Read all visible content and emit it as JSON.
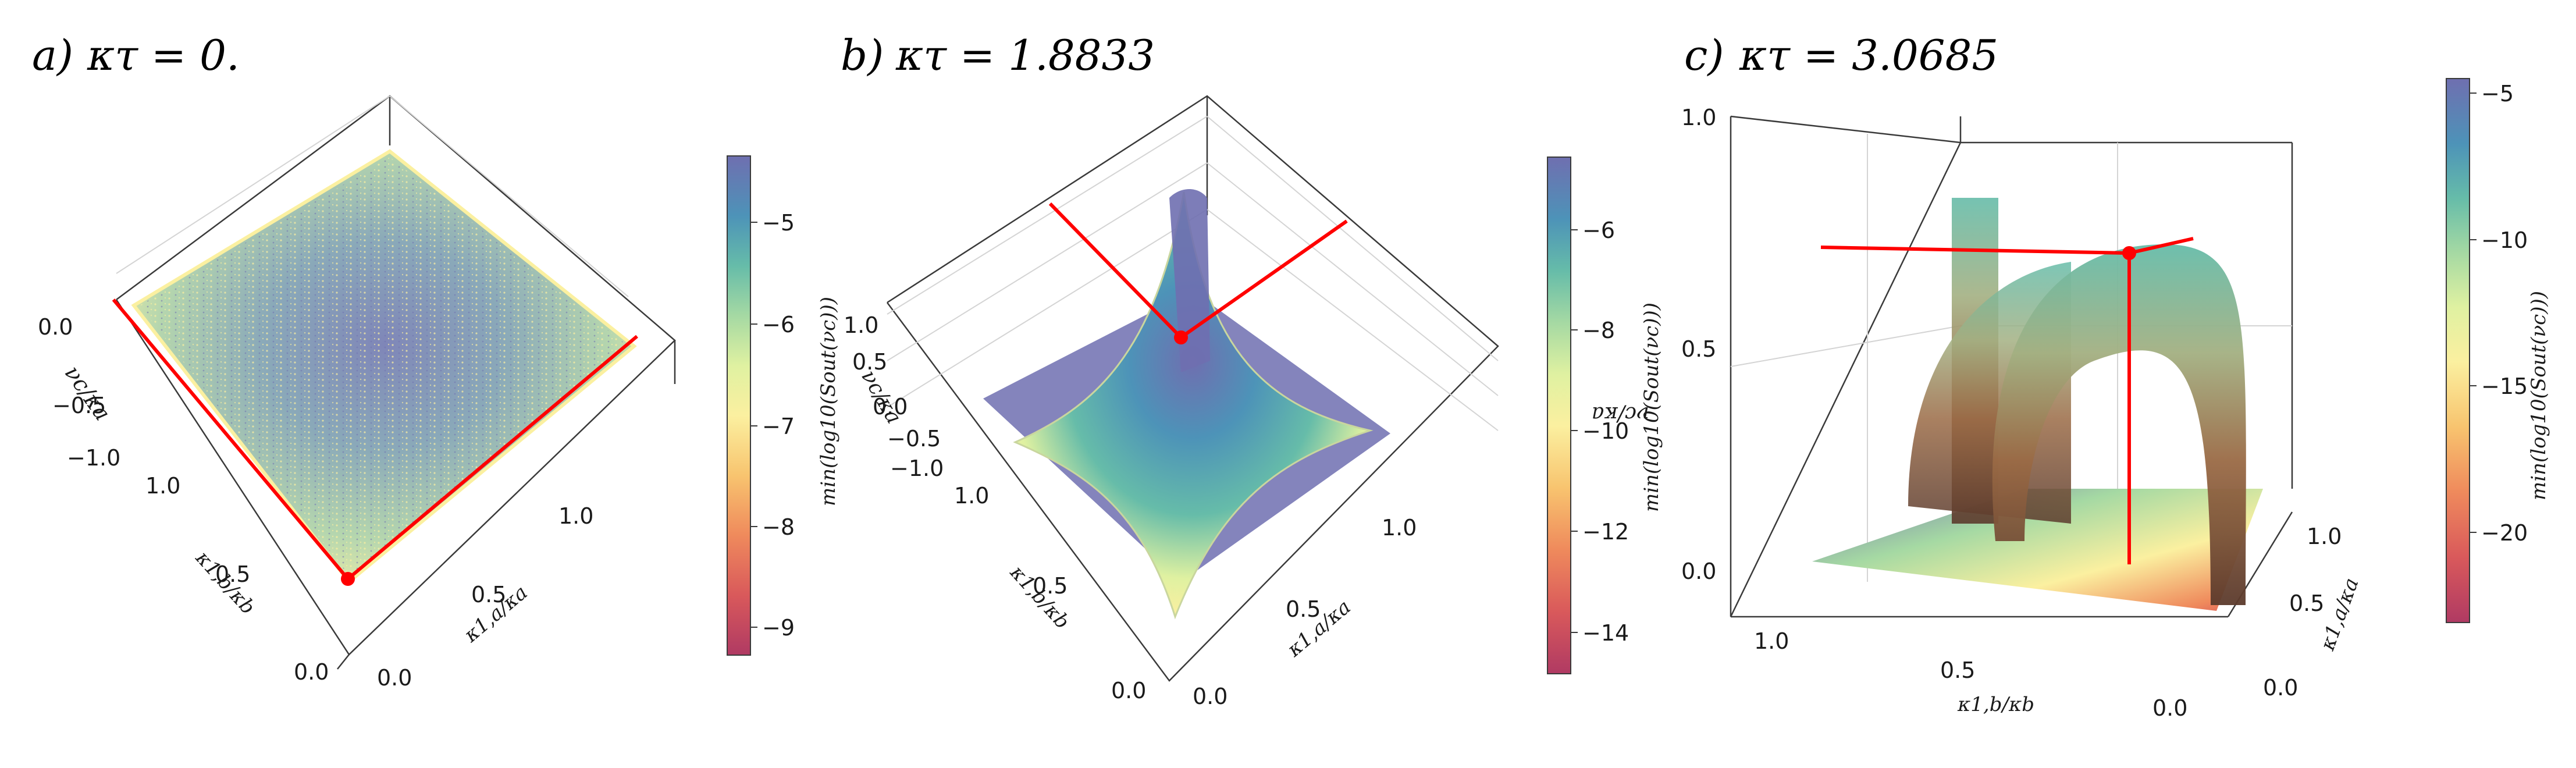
{
  "charts": [
    {
      "panel_label": "a)",
      "title": "κτ = 0.",
      "type": "surface3d",
      "x_axis": {
        "label": "κ1,a/κa",
        "ticks": [
          "0.0",
          "0.5",
          "1.0"
        ]
      },
      "y_axis": {
        "label": "κ1,b/κb",
        "ticks": [
          "0.0",
          "0.5",
          "1.0"
        ]
      },
      "z_axis": {
        "label": "νc/κa",
        "ticks": [
          "0.0",
          "−0.5",
          "−1.0"
        ]
      },
      "colorbar": {
        "label": "min(log10(Sout(νc)))",
        "ticks": [
          "−5",
          "−6",
          "−7",
          "−8",
          "−9"
        ],
        "range": [
          -9.4,
          -4.4
        ]
      },
      "highlight_point": {
        "x": 0.0,
        "y": 0.0,
        "z": -1.0
      },
      "highlight_lines": "ridge along edge κ1,b/κb = 0 and κ1,a/κa = 0"
    },
    {
      "panel_label": "b)",
      "title": "κτ = 1.8833",
      "type": "surface3d",
      "x_axis": {
        "label": "κ1,a/κa",
        "ticks": [
          "0.0",
          "0.5",
          "1.0"
        ]
      },
      "y_axis": {
        "label": "κ1,b/κb",
        "ticks": [
          "0.0",
          "0.5",
          "1.0"
        ]
      },
      "z_axis": {
        "label": "νc/κa",
        "ticks": [
          "1.0",
          "0.5",
          "0.0",
          "−0.5",
          "−1.0"
        ]
      },
      "colorbar": {
        "label": "min(log10(Sout(νc)))",
        "ticks": [
          "−6",
          "−8",
          "−10",
          "−12",
          "−14"
        ],
        "range": [
          -15,
          -4.8
        ]
      },
      "highlight_point": {
        "x": 0.0,
        "y": 0.0,
        "z": 0.0
      }
    },
    {
      "panel_label": "c)",
      "title": "κτ = 3.0685",
      "type": "surface3d",
      "x_axis": {
        "label": "κ1,a/κa",
        "ticks": [
          "0.0",
          "0.5",
          "1.0"
        ]
      },
      "y_axis": {
        "label": "κ1,b/κb",
        "ticks": [
          "1.0",
          "0.5",
          "0.0"
        ]
      },
      "z_axis": {
        "label": "νc/κa",
        "ticks": [
          "0.0",
          "0.5",
          "1.0"
        ]
      },
      "colorbar": {
        "label": "min(log10(Sout(νc)))",
        "ticks": [
          "−5",
          "−10",
          "−15",
          "−20"
        ],
        "range": [
          -23,
          -4
        ]
      },
      "highlight_point": {
        "x": 0.1,
        "y": 0.2,
        "z": 0.7
      }
    }
  ],
  "palette": {
    "line": "#ff0000",
    "axis": "#3a3a3a",
    "grid": "#d4d4d4",
    "spectral": [
      "#b03a63",
      "#d9595b",
      "#ef8a5c",
      "#f8c46f",
      "#fbf0a0",
      "#dff1a1",
      "#a5d9a3",
      "#66bca9",
      "#4d93b8",
      "#6f6fb0"
    ]
  }
}
